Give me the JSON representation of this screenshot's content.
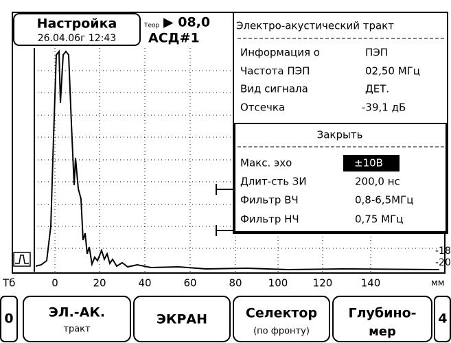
{
  "header": {
    "title": "Настройка",
    "datetime": "26.04.06г 12:43",
    "mode_icon": "Теор",
    "reading": "▶ 08,0",
    "device": "АСД#1"
  },
  "scale": {
    "unit_left": "Тб",
    "x_labels": [
      "0",
      "20",
      "40",
      "60",
      "80",
      "100",
      "120",
      "140"
    ],
    "unit_right": "мм",
    "y_labels": [
      "-18",
      "-20"
    ]
  },
  "panel": {
    "title": "Электро-акустический тракт",
    "rows": [
      [
        "Информация о",
        "ПЭП"
      ],
      [
        "Частота ПЭП",
        "02,50 МГц"
      ],
      [
        "Вид сигнала",
        "ДЕТ."
      ],
      [
        "Отсечка",
        "-39,1 дБ"
      ]
    ],
    "close": "Закрыть",
    "settings": [
      [
        "Макс. эхо",
        "±10В"
      ],
      [
        "Длит-сть ЗИ",
        "200,0 нс"
      ],
      [
        "Фильтр ВЧ",
        "0,8-6,5МГц"
      ],
      [
        "Фильтр НЧ",
        "0,75 МГц"
      ]
    ]
  },
  "buttons": [
    {
      "label": "0"
    },
    {
      "label": "ЭЛ.-АК.",
      "sub": "тракт"
    },
    {
      "label": "ЭКРАН"
    },
    {
      "label": "Селектор",
      "sub": "(по фронту)"
    },
    {
      "label": "Глубино-",
      "sub": "мер"
    },
    {
      "label": "4"
    }
  ]
}
